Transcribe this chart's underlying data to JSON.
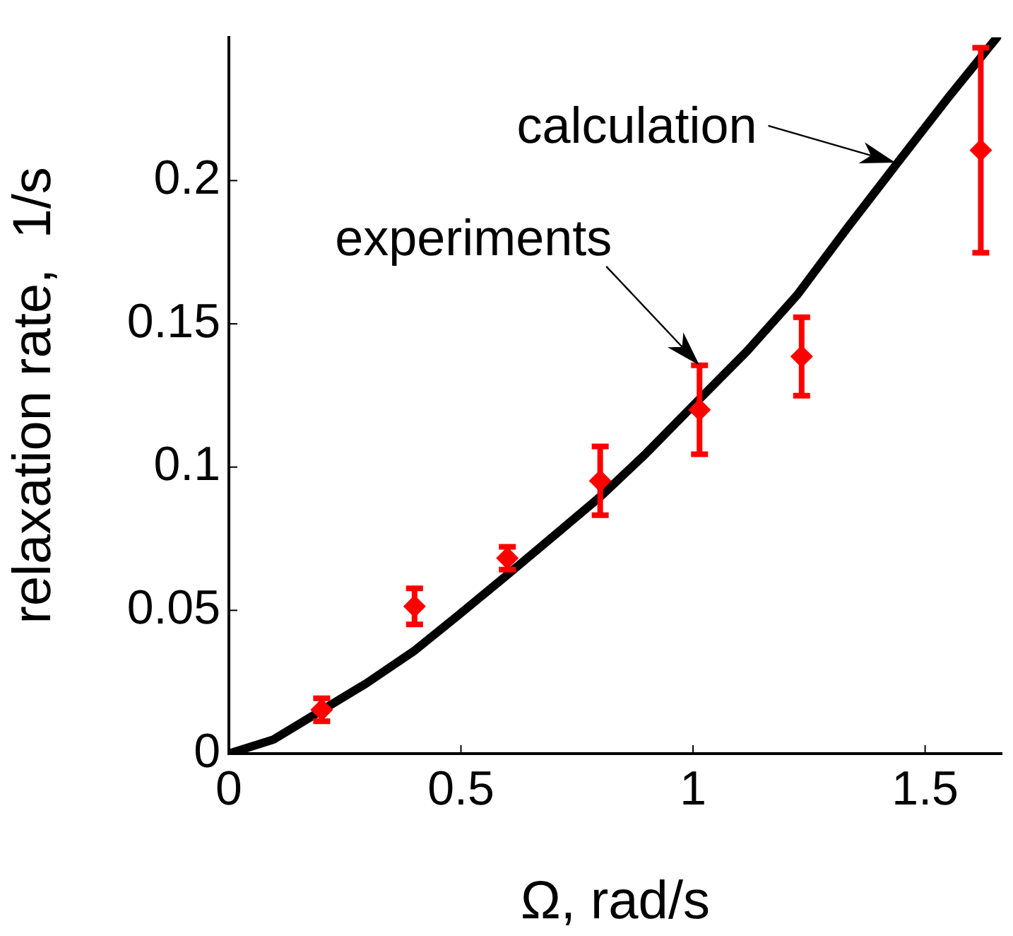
{
  "chart_data": {
    "type": "scatter",
    "xlabel": "Ω, rad/s",
    "ylabel": "relaxation rate,  1/s",
    "xlim": [
      0,
      1.665
    ],
    "ylim": [
      0,
      0.25
    ],
    "xticks": [
      0,
      0.5,
      1,
      1.5
    ],
    "yticks": [
      0,
      0.05,
      0.1,
      0.15,
      0.2
    ],
    "grid": false,
    "legend": false,
    "marker": "diamond",
    "series": [
      {
        "type": "scatter",
        "color": "#ff0000",
        "x": [
          0.2,
          0.4,
          0.6,
          0.8,
          1.014,
          1.234,
          1.62
        ],
        "values": [
          0.0153,
          0.0514,
          0.0682,
          0.0952,
          0.12,
          0.1386,
          0.2106
        ],
        "errors": [
          0.004,
          0.0063,
          0.004,
          0.012,
          0.0155,
          0.0137,
          0.0358
        ]
      },
      {
        "type": "line",
        "color": "#000000",
        "marker": "none",
        "x": [
          0,
          0.096,
          0.295,
          0.398,
          0.496,
          0.594,
          0.703,
          0.801,
          0.899,
          1.007,
          1.116,
          1.224,
          1.333,
          1.441,
          1.55,
          1.655
        ],
        "values": [
          0,
          0.0049,
          0.0244,
          0.0357,
          0.0485,
          0.0616,
          0.0764,
          0.0898,
          0.1048,
          0.1226,
          0.1404,
          0.16,
          0.1836,
          0.2063,
          0.229,
          0.25
        ]
      }
    ],
    "annotations": [
      {
        "text": "calculation",
        "x": 1.436,
        "y": 0.2063
      },
      {
        "text": "experiments",
        "x": 1.014,
        "y": 0.1355
      }
    ]
  }
}
